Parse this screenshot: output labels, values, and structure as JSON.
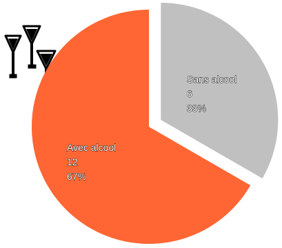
{
  "chart_data": {
    "type": "pie",
    "slices": [
      {
        "label": "Sans alcool",
        "value": 6,
        "percent": "33%",
        "color": "#c0c0c0",
        "exploded": true
      },
      {
        "label": "Avec alcool",
        "value": 12,
        "percent": "67%",
        "color": "#ff6633",
        "exploded": false
      }
    ]
  },
  "decoration": {
    "icon": "cocktail-glasses-icon"
  }
}
